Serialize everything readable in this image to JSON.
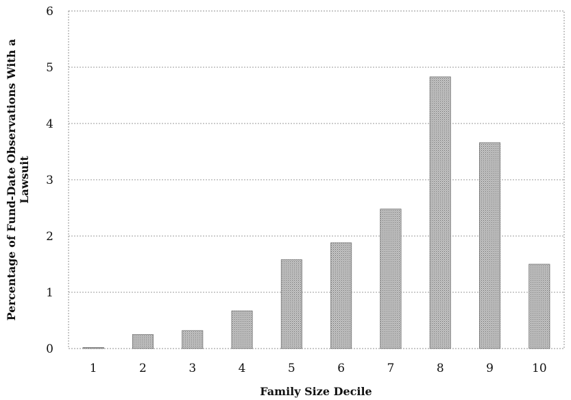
{
  "chart_data": {
    "type": "bar",
    "categories": [
      "1",
      "2",
      "3",
      "4",
      "5",
      "6",
      "7",
      "8",
      "9",
      "10"
    ],
    "values": [
      0.02,
      0.25,
      0.32,
      0.67,
      1.58,
      1.88,
      2.48,
      4.83,
      3.66,
      1.5
    ],
    "xlabel": "Family Size Decile",
    "ylabel_lines": [
      "Percentage of Fund-Date Observations With a",
      "Lawsuit"
    ],
    "ylim": [
      0,
      6
    ],
    "yticks": [
      "0",
      "1",
      "2",
      "3",
      "4",
      "5",
      "6"
    ],
    "grid": true,
    "bar_color": "#b3b3b3"
  }
}
